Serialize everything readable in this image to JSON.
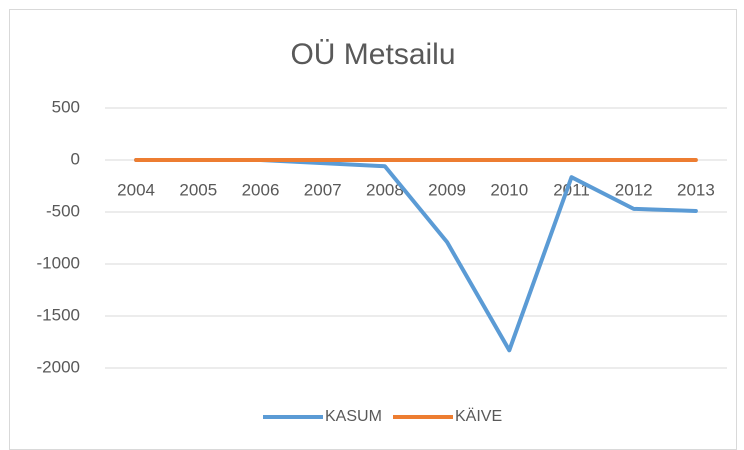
{
  "chart_data": {
    "type": "line",
    "title": "OÜ Metsailu",
    "categories": [
      "2004",
      "2005",
      "2006",
      "2007",
      "2008",
      "2009",
      "2010",
      "2011",
      "2012",
      "2013"
    ],
    "series": [
      {
        "name": "KASUM",
        "color": "#5b9bd5",
        "values": [
          0,
          0,
          0,
          -30,
          -60,
          -790,
          -1830,
          -165,
          -470,
          -490
        ]
      },
      {
        "name": "KÄIVE",
        "color": "#ed7d31",
        "values": [
          0,
          0,
          0,
          0,
          0,
          0,
          0,
          0,
          0,
          0
        ]
      }
    ],
    "ylim": [
      -2000,
      500
    ],
    "yticks": [
      500,
      0,
      -500,
      -1000,
      -1500,
      -2000
    ],
    "grid": true,
    "legend": "bottom"
  }
}
